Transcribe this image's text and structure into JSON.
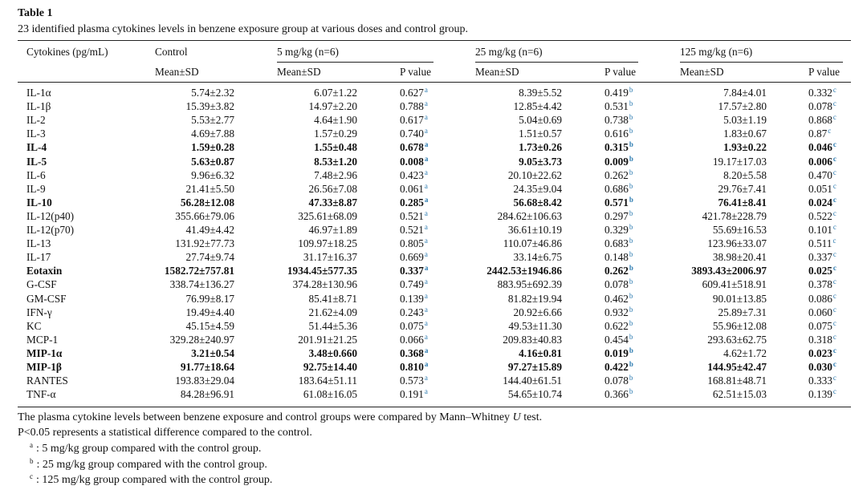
{
  "title": "Table 1",
  "caption": "23 identified plasma cytokines levels in benzene exposure group at various doses and control group.",
  "table": {
    "header": [
      "Cytokines (pg/mL)",
      "Control",
      "5 mg/kg (n=6)",
      "25 mg/kg (n=6)",
      "125 mg/kg (n=6)"
    ],
    "subheader": [
      "Mean±SD",
      "Mean±SD",
      "P value",
      "Mean±SD",
      "P value",
      "Mean±SD",
      "P value"
    ],
    "p_marks": [
      "a",
      "b",
      "c"
    ],
    "rows": [
      {
        "cells": [
          "IL-1α",
          "5.74±2.32",
          "6.07±1.22",
          "0.627",
          "8.39±5.52",
          "0.419",
          "7.84±4.01",
          "0.332"
        ]
      },
      {
        "cells": [
          "IL-1β",
          "15.39±3.82",
          "14.97±2.20",
          "0.788",
          "12.85±4.42",
          "0.531",
          "17.57±2.80",
          "0.078"
        ]
      },
      {
        "cells": [
          "IL-2",
          "5.53±2.77",
          "4.64±1.90",
          "0.617",
          "5.04±0.69",
          "0.738",
          "5.03±1.19",
          "0.868"
        ]
      },
      {
        "cells": [
          "IL-3",
          "4.69±7.88",
          "1.57±0.29",
          "0.740",
          "1.51±0.57",
          "0.616",
          "1.83±0.67",
          "0.87"
        ]
      },
      {
        "cells": [
          "IL-4",
          "1.59±0.28",
          "1.55±0.48",
          "0.678",
          "1.73±0.26",
          "0.315",
          "1.93±0.22",
          "0.046"
        ],
        "bold": [
          0,
          1,
          2,
          3,
          4,
          5,
          6,
          7
        ]
      },
      {
        "cells": [
          "IL-5",
          "5.63±0.87",
          "8.53±1.20",
          "0.008",
          "9.05±3.73",
          "0.009",
          "19.17±17.03",
          "0.006"
        ],
        "bold": [
          0,
          1,
          2,
          3,
          4,
          5,
          7
        ]
      },
      {
        "cells": [
          "IL-6",
          "9.96±6.32",
          "7.48±2.96",
          "0.423",
          "20.10±22.62",
          "0.262",
          "8.20±5.58",
          "0.470"
        ]
      },
      {
        "cells": [
          "IL-9",
          "21.41±5.50",
          "26.56±7.08",
          "0.061",
          "24.35±9.04",
          "0.686",
          "29.76±7.41",
          "0.051"
        ]
      },
      {
        "cells": [
          "IL-10",
          "56.28±12.08",
          "47.33±8.87",
          "0.285",
          "56.68±8.42",
          "0.571",
          "76.41±8.41",
          "0.024"
        ],
        "bold": [
          0,
          1,
          2,
          3,
          4,
          5,
          6,
          7
        ]
      },
      {
        "cells": [
          "IL-12(p40)",
          "355.66±79.06",
          "325.61±68.09",
          "0.521",
          "284.62±106.63",
          "0.297",
          "421.78±228.79",
          "0.522"
        ]
      },
      {
        "cells": [
          "IL-12(p70)",
          "41.49±4.42",
          "46.97±1.89",
          "0.521",
          "36.61±10.19",
          "0.329",
          "55.69±16.53",
          "0.101"
        ]
      },
      {
        "cells": [
          "IL-13",
          "131.92±77.73",
          "109.97±18.25",
          "0.805",
          "110.07±46.86",
          "0.683",
          "123.96±33.07",
          "0.511"
        ]
      },
      {
        "cells": [
          "IL-17",
          "27.74±9.74",
          "31.17±16.37",
          "0.669",
          "33.14±6.75",
          "0.148",
          "38.98±20.41",
          "0.337"
        ]
      },
      {
        "cells": [
          "Eotaxin",
          "1582.72±757.81",
          "1934.45±577.35",
          "0.337",
          "2442.53±1946.86",
          "0.262",
          "3893.43±2006.97",
          "0.025"
        ],
        "bold": [
          0,
          1,
          2,
          3,
          4,
          5,
          6,
          7
        ]
      },
      {
        "cells": [
          "G-CSF",
          "338.74±136.27",
          "374.28±130.96",
          "0.749",
          "883.95±692.39",
          "0.078",
          "609.41±518.91",
          "0.378"
        ]
      },
      {
        "cells": [
          "GM-CSF",
          "76.99±8.17",
          "85.41±8.71",
          "0.139",
          "81.82±19.94",
          "0.462",
          "90.01±13.85",
          "0.086"
        ]
      },
      {
        "cells": [
          "IFN-γ",
          "19.49±4.40",
          "21.62±4.09",
          "0.243",
          "20.92±6.66",
          "0.932",
          "25.89±7.31",
          "0.060"
        ]
      },
      {
        "cells": [
          "KC",
          "45.15±4.59",
          "51.44±5.36",
          "0.075",
          "49.53±11.30",
          "0.622",
          "55.96±12.08",
          "0.075"
        ]
      },
      {
        "cells": [
          "MCP-1",
          "329.28±240.97",
          "201.91±21.25",
          "0.066",
          "209.83±40.83",
          "0.454",
          "293.63±62.75",
          "0.318"
        ]
      },
      {
        "cells": [
          "MIP-1α",
          "3.21±0.54",
          "3.48±0.660",
          "0.368",
          "4.16±0.81",
          "0.019",
          "4.62±1.72",
          "0.023"
        ],
        "bold": [
          0,
          1,
          2,
          3,
          4,
          5,
          7
        ]
      },
      {
        "cells": [
          "MIP-1β",
          "91.77±18.64",
          "92.75±14.40",
          "0.810",
          "97.27±15.89",
          "0.422",
          "144.95±42.47",
          "0.030"
        ],
        "bold": [
          0,
          1,
          2,
          3,
          4,
          5,
          6,
          7
        ]
      },
      {
        "cells": [
          "RANTES",
          "193.83±29.04",
          "183.64±51.11",
          "0.573",
          "144.40±61.51",
          "0.078",
          "168.81±48.71",
          "0.333"
        ]
      },
      {
        "cells": [
          "TNF-α",
          "84.28±96.91",
          "61.08±16.05",
          "0.191",
          "54.65±10.74",
          "0.366",
          "62.51±15.03",
          "0.139"
        ]
      }
    ]
  },
  "notes": {
    "test": [
      "The plasma cytokine levels between benzene exposure and control groups were compared by Mann–Whitney ",
      "U",
      " test."
    ],
    "significance": "P<0.05 represents a statistical difference compared to the control.",
    "footnotes": [
      ": 5 mg/kg group compared with the control group.",
      ": 25 mg/kg group compared with the control group.",
      ": 125 mg/kg group compared with the control group."
    ]
  }
}
